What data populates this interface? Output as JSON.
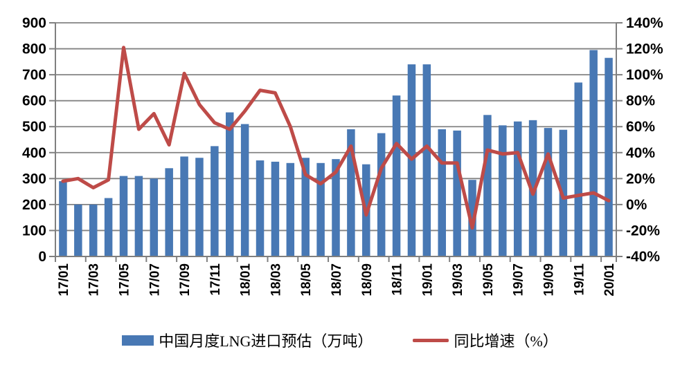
{
  "chart_data": {
    "type": "combo-bar-line",
    "title": "",
    "categories": [
      "17/01",
      "17/02",
      "17/03",
      "17/04",
      "17/05",
      "17/06",
      "17/07",
      "17/08",
      "17/09",
      "17/10",
      "17/11",
      "17/12",
      "18/01",
      "18/02",
      "18/03",
      "18/04",
      "18/05",
      "18/06",
      "18/07",
      "18/08",
      "18/09",
      "18/10",
      "18/11",
      "18/12",
      "19/01",
      "19/02",
      "19/03",
      "19/04",
      "19/05",
      "19/06",
      "19/07",
      "19/08",
      "19/09",
      "19/10",
      "19/11",
      "19/12",
      "20/01"
    ],
    "x_label_every": 2,
    "series": [
      {
        "name": "中国月度LNG进口预估（万吨）",
        "type": "bar",
        "axis": "left",
        "color": "#4878B4",
        "values": [
          290,
          200,
          200,
          225,
          310,
          310,
          300,
          340,
          385,
          380,
          425,
          555,
          510,
          370,
          365,
          360,
          380,
          360,
          375,
          490,
          355,
          475,
          620,
          740,
          740,
          490,
          485,
          295,
          545,
          505,
          520,
          525,
          495,
          488,
          670,
          795,
          765
        ]
      },
      {
        "name": "同比增速（%）",
        "type": "line",
        "axis": "right",
        "color": "#BE4B48",
        "values": [
          18,
          20,
          13,
          19,
          121,
          58,
          70,
          46,
          101,
          77,
          63,
          58,
          72,
          88,
          86,
          60,
          23,
          16,
          25,
          45,
          -8,
          28,
          47,
          35,
          45,
          32,
          32,
          -18,
          42,
          39,
          40,
          8,
          39,
          5,
          7,
          9,
          3
        ]
      }
    ],
    "left_axis": {
      "min": 0,
      "max": 900,
      "step": 100,
      "tick_labels": [
        "0",
        "100",
        "200",
        "300",
        "400",
        "500",
        "600",
        "700",
        "800",
        "900"
      ]
    },
    "right_axis": {
      "min": -40,
      "max": 140,
      "step": 20,
      "suffix": "%",
      "tick_labels": [
        "-40%",
        "-20%",
        "0%",
        "20%",
        "40%",
        "60%",
        "80%",
        "100%",
        "120%",
        "140%"
      ]
    },
    "grid": true,
    "legend_position": "bottom"
  },
  "legend": {
    "items": [
      {
        "label": "中国月度LNG进口预估（万吨）",
        "swatch": "bar-swatch",
        "color": "#4878B4"
      },
      {
        "label": "同比增速（%）",
        "swatch": "line-swatch",
        "color": "#BE4B48"
      }
    ]
  },
  "colors": {
    "bar": "#4878B4",
    "line": "#BE4B48",
    "grid": "#828282",
    "axis": "#7F7F7F",
    "text": "#000000",
    "background": "#FFFFFF"
  }
}
